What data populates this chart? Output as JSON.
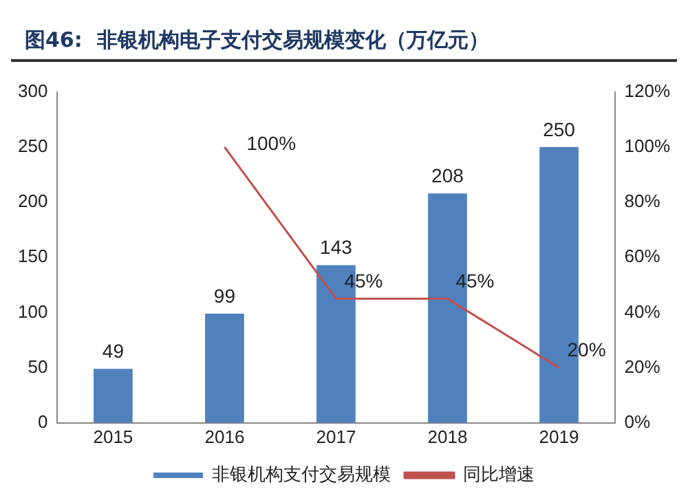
{
  "chart_data": {
    "type": "bar",
    "title": "图46:  非银机构电子支付交易规模变化（万亿元）",
    "categories": [
      "2015",
      "2016",
      "2017",
      "2018",
      "2019"
    ],
    "series": [
      {
        "name": "非银机构支付交易规模",
        "color": "#4f81bd",
        "values": [
          49,
          99,
          143,
          208,
          250
        ],
        "value_labels": [
          "49",
          "99",
          "143",
          "208",
          "250"
        ]
      },
      {
        "name": "同比增速",
        "type": "line",
        "axis": "y2",
        "color": "#c0504d",
        "values": [
          null,
          100,
          45,
          45,
          20
        ],
        "value_labels": [
          null,
          "100%",
          "45%",
          "45%",
          "20%"
        ]
      }
    ],
    "ylim": [
      0,
      300
    ],
    "yticks": [
      0,
      50,
      100,
      150,
      200,
      250,
      300
    ],
    "y2lim": [
      0,
      120
    ],
    "y2ticks": [
      {
        "value": 0,
        "label": "0%"
      },
      {
        "value": 20,
        "label": "20%"
      },
      {
        "value": 40,
        "label": "40%"
      },
      {
        "value": 60,
        "label": "60%"
      },
      {
        "value": 80,
        "label": "80%"
      },
      {
        "value": 100,
        "label": "100%"
      },
      {
        "value": 120,
        "label": "120%"
      }
    ],
    "grid": false,
    "legend": "bottom",
    "marker": "none"
  }
}
